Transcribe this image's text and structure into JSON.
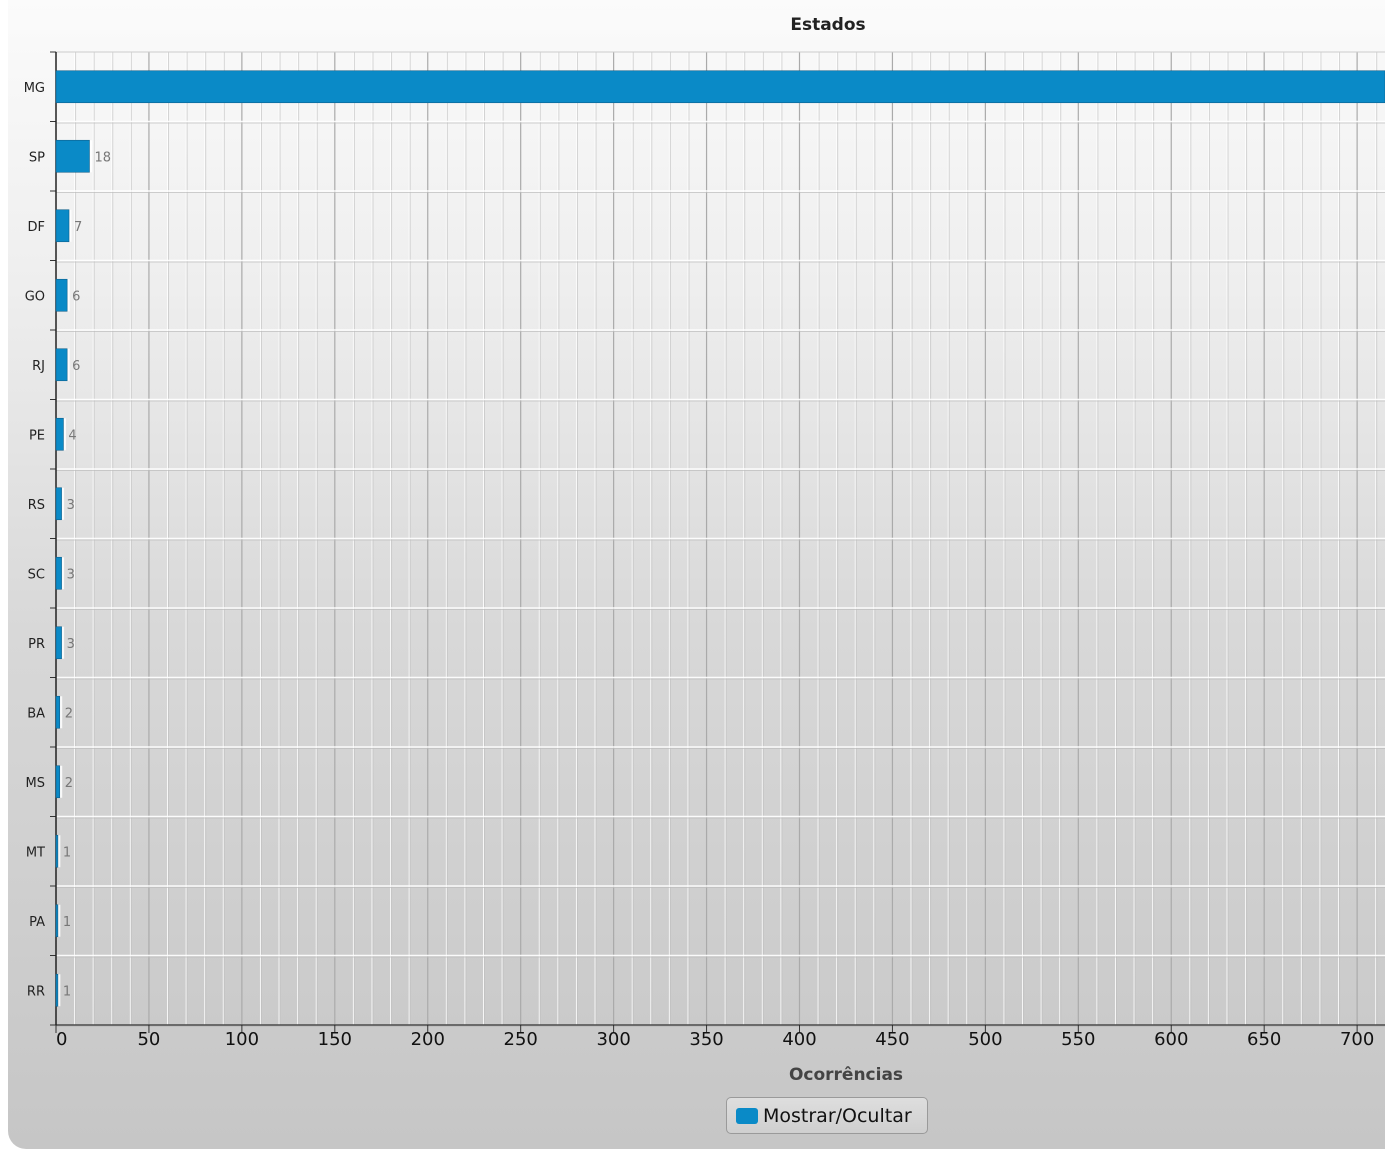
{
  "colors": {
    "bar": "#0a8ac7",
    "bar_edge": "#0f5f8a"
  },
  "legend": {
    "label": "Mostrar/Ocultar"
  },
  "chart_data": {
    "type": "bar",
    "orientation": "horizontal",
    "title": "Estados",
    "xlabel": "Ocorrências",
    "ylabel": "",
    "categories": [
      "MG",
      "SP",
      "DF",
      "GO",
      "RJ",
      "PE",
      "RS",
      "SC",
      "PR",
      "BA",
      "MS",
      "MT",
      "PA",
      "RR"
    ],
    "values": [
      715,
      18,
      7,
      6,
      6,
      4,
      3,
      3,
      3,
      2,
      2,
      1,
      1,
      1
    ],
    "data_labels": [
      "",
      "18",
      "7",
      "6",
      "6",
      "4",
      "3",
      "3",
      "3",
      "2",
      "2",
      "1",
      "1",
      "1"
    ],
    "xlim": [
      0,
      715
    ],
    "x_ticks": [
      "0",
      "50",
      "100",
      "150",
      "200",
      "250",
      "300",
      "350",
      "400",
      "450",
      "500",
      "550",
      "600",
      "650",
      "700"
    ],
    "grid": true,
    "legend_position": "bottom-center"
  }
}
